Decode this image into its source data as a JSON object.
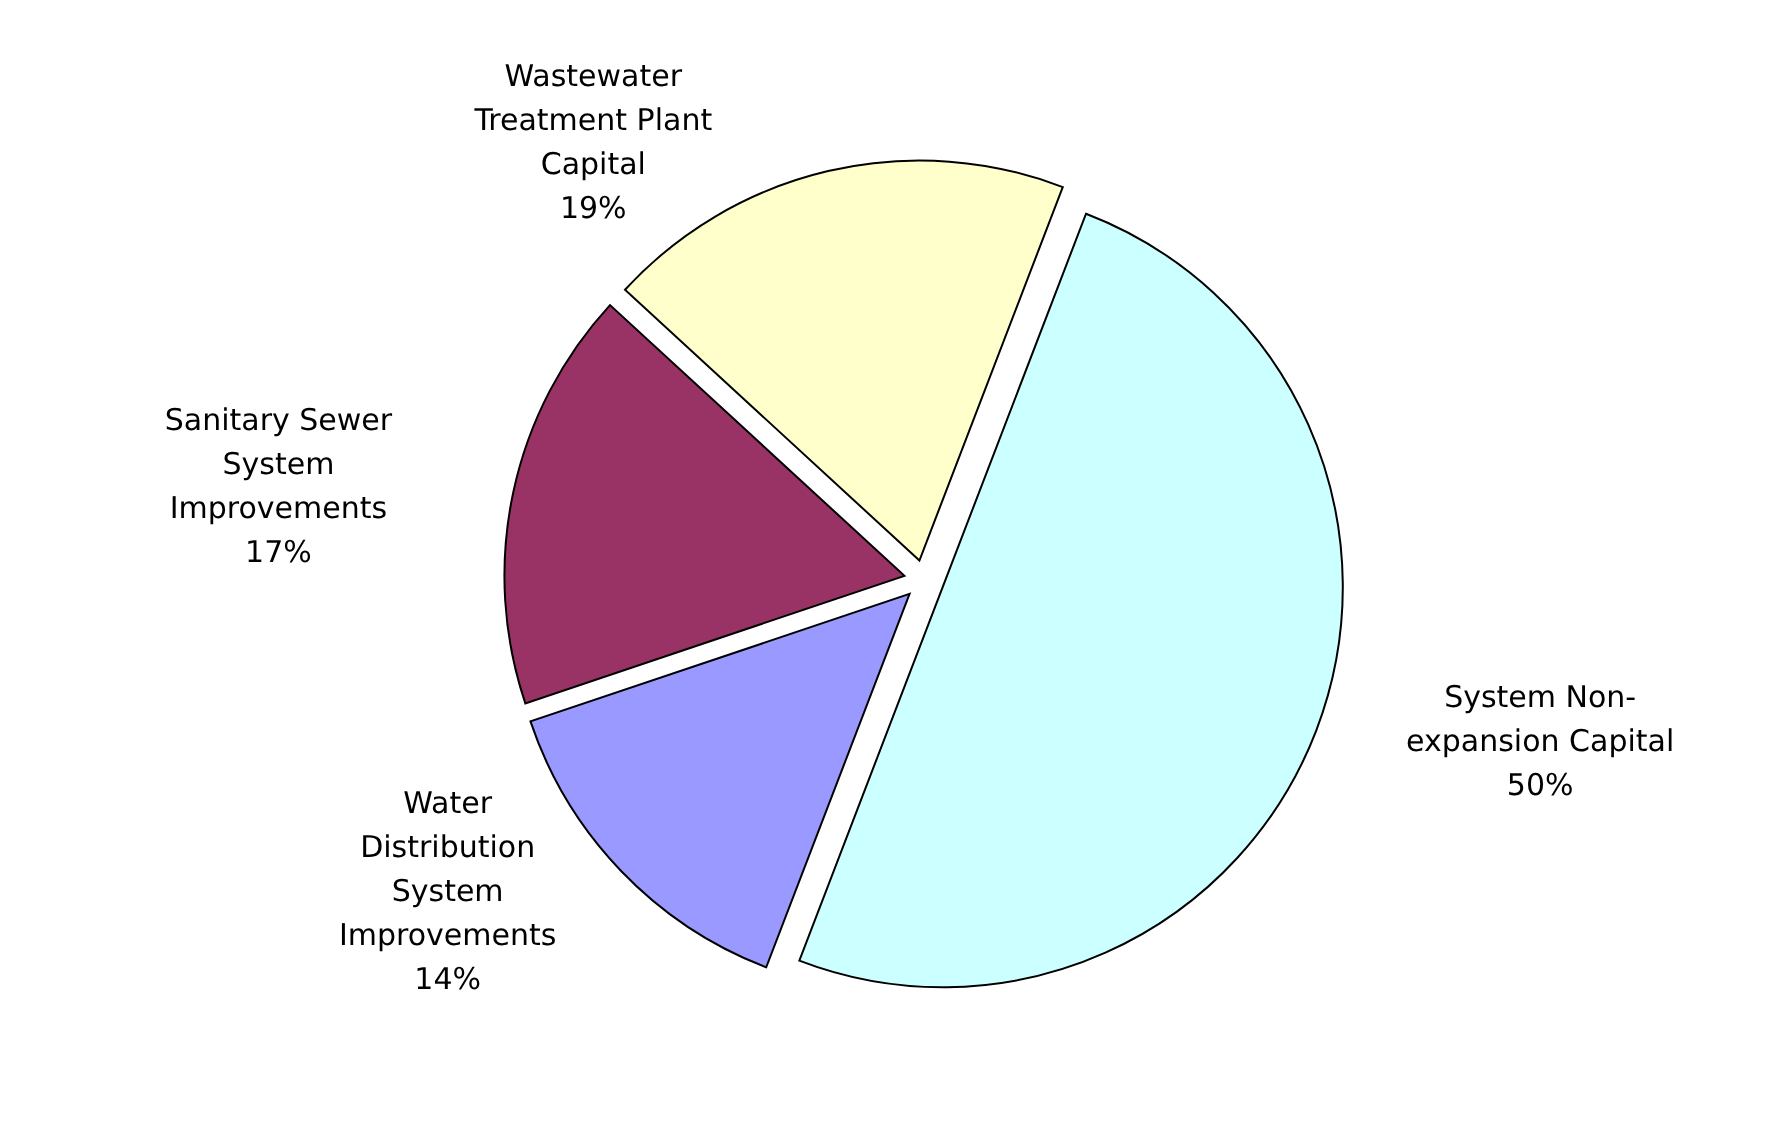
{
  "chart_data": {
    "type": "pie",
    "categories": [
      "System Non-expansion Capital",
      "Water Distribution System Improvements",
      "Sanitary Sewer System Improvements",
      "Wastewater Treatment Plant Capital"
    ],
    "values": [
      50,
      14,
      17,
      19
    ],
    "colors": [
      "#ccffff",
      "#9999ff",
      "#993366",
      "#ffffcc"
    ],
    "value_labels": [
      "50%",
      "14%",
      "17%",
      "19%"
    ]
  }
}
